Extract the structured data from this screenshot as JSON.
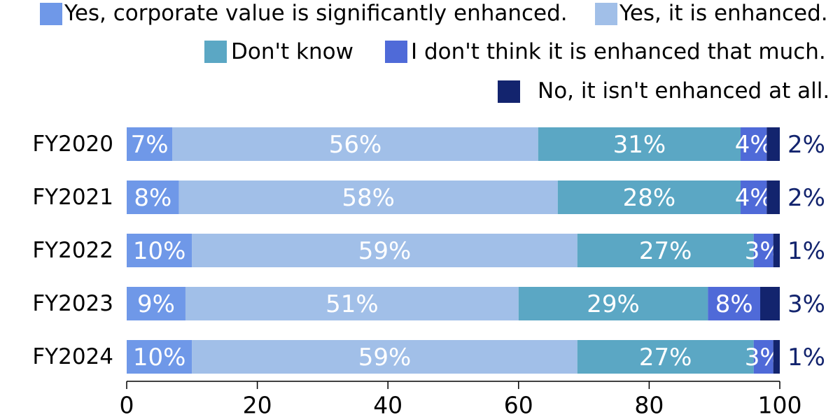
{
  "chart_data": {
    "type": "bar",
    "orientation": "horizontal",
    "stacked": true,
    "categories": [
      "FY2020",
      "FY2021",
      "FY2022",
      "FY2023",
      "FY2024"
    ],
    "series": [
      {
        "name": "Yes, corporate value is significantly enhanced.",
        "values": [
          7,
          8,
          10,
          9,
          10
        ],
        "labels": [
          "7%",
          "8%",
          "10%",
          "9%",
          "10%"
        ],
        "color": "#6f98e8"
      },
      {
        "name": "Yes, it is enhanced.",
        "values": [
          56,
          58,
          59,
          51,
          59
        ],
        "labels": [
          "56%",
          "58%",
          "59%",
          "51%",
          "59%"
        ],
        "color": "#a1bfe8"
      },
      {
        "name": "Don't know",
        "values": [
          31,
          28,
          27,
          29,
          27
        ],
        "labels": [
          "31%",
          "28%",
          "27%",
          "29%",
          "27%"
        ],
        "color": "#5ba7c4"
      },
      {
        "name": "I don't think it is enhanced that much.",
        "values": [
          4,
          4,
          3,
          8,
          3
        ],
        "labels": [
          "4%",
          "4%",
          "3%",
          "8%",
          "3%"
        ],
        "color": "#4f6ad8"
      },
      {
        "name": "No, it isn't enhanced at all.",
        "values": [
          2,
          2,
          1,
          3,
          1
        ],
        "labels": [
          "2%",
          "2%",
          "1%",
          "3%",
          "1%"
        ],
        "color": "#13246e"
      }
    ],
    "xlim": [
      0,
      100
    ],
    "xticks": [
      "0",
      "20",
      "40",
      "60",
      "80",
      "100"
    ],
    "xlabel": "",
    "ylabel": "",
    "legend": "top-right",
    "grid": false
  }
}
